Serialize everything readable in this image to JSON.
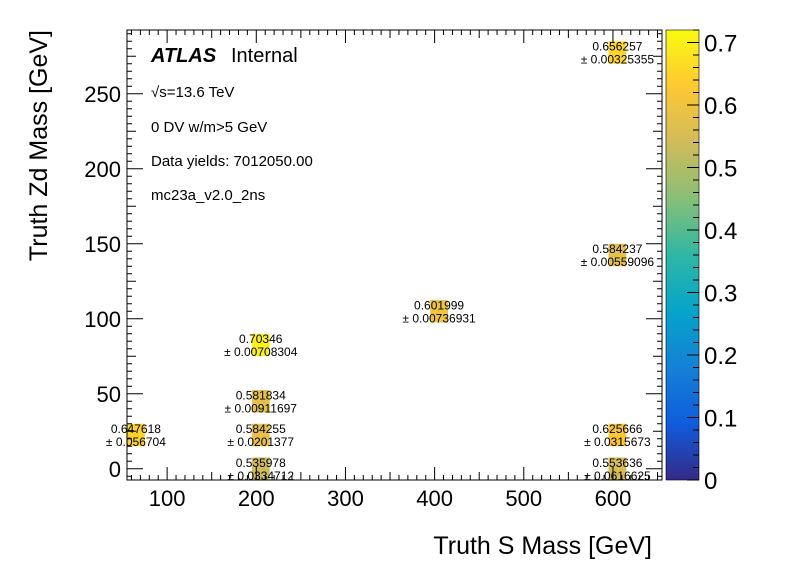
{
  "chart_data": {
    "type": "heatmap",
    "title": "",
    "xlabel": "Truth S Mass [GeV]",
    "ylabel": "Truth Zd Mass [GeV]",
    "xlim": [
      55,
      655
    ],
    "ylim": [
      -7.5,
      292.5
    ],
    "xticks": [
      100,
      200,
      300,
      400,
      500,
      600
    ],
    "yticks": [
      0,
      50,
      100,
      150,
      200,
      250
    ],
    "zlim": [
      0,
      0.72
    ],
    "zticks": [
      0,
      0.1,
      0.2,
      0.3,
      0.4,
      0.5,
      0.6,
      0.7
    ],
    "bin_width_x": 20,
    "bin_width_y": 15,
    "cells": [
      {
        "x": 65,
        "y": 22.5,
        "value": "0.647618",
        "error": "± 0.056704",
        "z": 0.647618
      },
      {
        "x": 205,
        "y": 0,
        "value": "0.535978",
        "error": "± 0.0334712",
        "z": 0.535978
      },
      {
        "x": 205,
        "y": 22.5,
        "value": "0.584255",
        "error": "± 0.0201377",
        "z": 0.584255
      },
      {
        "x": 205,
        "y": 45,
        "value": "0.581834",
        "error": "± 0.00911697",
        "z": 0.581834
      },
      {
        "x": 205,
        "y": 82.5,
        "value": "0.70346",
        "error": "± 0.00708304",
        "z": 0.70346
      },
      {
        "x": 405,
        "y": 105,
        "value": "0.601999",
        "error": "± 0.00736931",
        "z": 0.601999
      },
      {
        "x": 605,
        "y": 0,
        "value": "0.553636",
        "error": "± 0.0616625",
        "z": 0.553636
      },
      {
        "x": 605,
        "y": 22.5,
        "value": "0.625666",
        "error": "± 0.0315673",
        "z": 0.625666
      },
      {
        "x": 605,
        "y": 142.5,
        "value": "0.584237",
        "error": "± 0.00559096",
        "z": 0.584237
      },
      {
        "x": 605,
        "y": 277.5,
        "value": "0.656257",
        "error": "± 0.00325355",
        "z": 0.656257
      }
    ],
    "annotations": {
      "atlas_label": "ATLAS",
      "atlas_status": "Internal",
      "energy": "√s=13.6 TeV",
      "selection": "0 DV w/m>5 GeV",
      "yields": "Data yields: 7012050.00",
      "sample": "mc23a_v2.0_2ns"
    }
  },
  "colors": {
    "palette_stops": [
      "#352a87",
      "#0f5cdd",
      "#1481d6",
      "#06a4ca",
      "#2eb7a4",
      "#87bf77",
      "#d1bb59",
      "#fec832",
      "#f9fb0e"
    ]
  }
}
